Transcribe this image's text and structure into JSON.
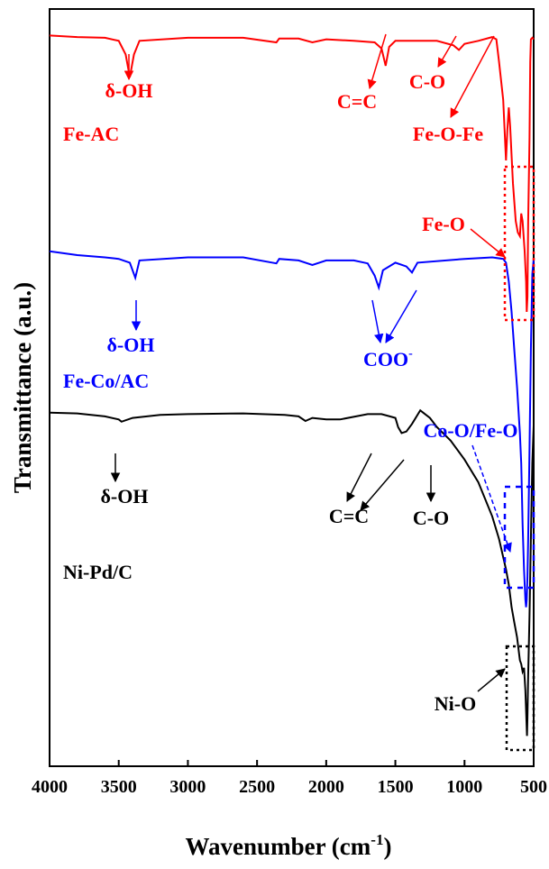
{
  "chart_data": {
    "type": "line",
    "xlabel": "Wavenumber (cm",
    "xlabel_sup": "-1",
    "xlabel_tail": ")",
    "ylabel": "Transmittance (a.u.)",
    "xlim": [
      4000,
      500
    ],
    "x_ticks": [
      4000,
      3500,
      3000,
      2500,
      2000,
      1500,
      1000,
      500
    ],
    "x_reversed": true,
    "y_ticks_shown": false,
    "grid": false,
    "series": [
      {
        "name": "Fe-AC",
        "color": "#ff0000",
        "points": [
          [
            4000,
            0.965
          ],
          [
            3800,
            0.963
          ],
          [
            3600,
            0.962
          ],
          [
            3500,
            0.958
          ],
          [
            3450,
            0.94
          ],
          [
            3420,
            0.91
          ],
          [
            3390,
            0.94
          ],
          [
            3350,
            0.958
          ],
          [
            3000,
            0.962
          ],
          [
            2600,
            0.962
          ],
          [
            2360,
            0.956
          ],
          [
            2340,
            0.961
          ],
          [
            2200,
            0.961
          ],
          [
            2100,
            0.956
          ],
          [
            2000,
            0.96
          ],
          [
            1800,
            0.958
          ],
          [
            1650,
            0.956
          ],
          [
            1600,
            0.948
          ],
          [
            1570,
            0.925
          ],
          [
            1545,
            0.95
          ],
          [
            1500,
            0.958
          ],
          [
            1200,
            0.958
          ],
          [
            1080,
            0.952
          ],
          [
            1040,
            0.946
          ],
          [
            1000,
            0.954
          ],
          [
            900,
            0.958
          ],
          [
            800,
            0.963
          ],
          [
            770,
            0.96
          ],
          [
            750,
            0.93
          ],
          [
            720,
            0.88
          ],
          [
            700,
            0.8
          ],
          [
            690,
            0.84
          ],
          [
            680,
            0.87
          ],
          [
            670,
            0.845
          ],
          [
            650,
            0.77
          ],
          [
            630,
            0.72
          ],
          [
            615,
            0.705
          ],
          [
            600,
            0.7
          ],
          [
            590,
            0.73
          ],
          [
            580,
            0.72
          ],
          [
            565,
            0.68
          ],
          [
            555,
            0.64
          ],
          [
            550,
            0.6
          ],
          [
            545,
            0.62
          ],
          [
            540,
            0.72
          ],
          [
            530,
            0.83
          ],
          [
            525,
            0.93
          ],
          [
            520,
            0.96
          ],
          [
            510,
            0.962
          ],
          [
            500,
            0.96
          ]
        ]
      },
      {
        "name": "Fe-Co/AC",
        "color": "#0000ff",
        "points": [
          [
            4000,
            0.68
          ],
          [
            3800,
            0.675
          ],
          [
            3600,
            0.672
          ],
          [
            3500,
            0.67
          ],
          [
            3420,
            0.665
          ],
          [
            3380,
            0.645
          ],
          [
            3350,
            0.668
          ],
          [
            3000,
            0.672
          ],
          [
            2600,
            0.672
          ],
          [
            2360,
            0.664
          ],
          [
            2340,
            0.67
          ],
          [
            2200,
            0.668
          ],
          [
            2100,
            0.662
          ],
          [
            2000,
            0.668
          ],
          [
            1800,
            0.668
          ],
          [
            1700,
            0.664
          ],
          [
            1650,
            0.648
          ],
          [
            1620,
            0.632
          ],
          [
            1590,
            0.655
          ],
          [
            1500,
            0.665
          ],
          [
            1420,
            0.66
          ],
          [
            1380,
            0.652
          ],
          [
            1340,
            0.665
          ],
          [
            1000,
            0.67
          ],
          [
            800,
            0.672
          ],
          [
            720,
            0.67
          ],
          [
            700,
            0.665
          ],
          [
            680,
            0.64
          ],
          [
            660,
            0.6
          ],
          [
            640,
            0.55
          ],
          [
            620,
            0.5
          ],
          [
            600,
            0.44
          ],
          [
            590,
            0.4
          ],
          [
            580,
            0.32
          ],
          [
            570,
            0.26
          ],
          [
            560,
            0.22
          ],
          [
            555,
            0.21
          ],
          [
            550,
            0.22
          ],
          [
            545,
            0.25
          ],
          [
            540,
            0.3
          ],
          [
            530,
            0.42
          ],
          [
            520,
            0.55
          ],
          [
            510,
            0.65
          ],
          [
            500,
            0.67
          ]
        ]
      },
      {
        "name": "Ni-Pd/C",
        "color": "#000000",
        "points": [
          [
            4000,
            0.467
          ],
          [
            3800,
            0.466
          ],
          [
            3600,
            0.462
          ],
          [
            3500,
            0.458
          ],
          [
            3480,
            0.455
          ],
          [
            3400,
            0.46
          ],
          [
            3200,
            0.464
          ],
          [
            3000,
            0.465
          ],
          [
            2600,
            0.466
          ],
          [
            2300,
            0.464
          ],
          [
            2200,
            0.462
          ],
          [
            2150,
            0.456
          ],
          [
            2100,
            0.46
          ],
          [
            2000,
            0.458
          ],
          [
            1900,
            0.458
          ],
          [
            1700,
            0.465
          ],
          [
            1600,
            0.465
          ],
          [
            1540,
            0.462
          ],
          [
            1500,
            0.46
          ],
          [
            1480,
            0.448
          ],
          [
            1455,
            0.44
          ],
          [
            1420,
            0.442
          ],
          [
            1380,
            0.452
          ],
          [
            1320,
            0.47
          ],
          [
            1300,
            0.467
          ],
          [
            1250,
            0.46
          ],
          [
            1200,
            0.448
          ],
          [
            1100,
            0.43
          ],
          [
            1000,
            0.405
          ],
          [
            900,
            0.375
          ],
          [
            800,
            0.33
          ],
          [
            750,
            0.3
          ],
          [
            700,
            0.26
          ],
          [
            680,
            0.24
          ],
          [
            660,
            0.21
          ],
          [
            640,
            0.19
          ],
          [
            620,
            0.17
          ],
          [
            600,
            0.14
          ],
          [
            590,
            0.135
          ],
          [
            580,
            0.125
          ],
          [
            570,
            0.13
          ],
          [
            560,
            0.1
          ],
          [
            552,
            0.06
          ],
          [
            548,
            0.04
          ],
          [
            545,
            0.065
          ],
          [
            540,
            0.12
          ],
          [
            530,
            0.2
          ],
          [
            520,
            0.3
          ],
          [
            510,
            0.4
          ],
          [
            500,
            0.45
          ]
        ]
      }
    ],
    "labels": [
      {
        "id": "fe-ac-label",
        "text": "Fe-AC",
        "color": "#ff0000"
      },
      {
        "id": "fe-co-ac-label",
        "text": "Fe-Co/AC",
        "color": "#0000ff"
      },
      {
        "id": "ni-pd-c-label",
        "text": "Ni-Pd/C",
        "color": "#000000"
      }
    ],
    "annotations": [
      {
        "id": "fe-ac-oh",
        "text": "δ-OH",
        "color": "#ff0000"
      },
      {
        "id": "fe-ac-cc",
        "text": "C=C",
        "color": "#ff0000"
      },
      {
        "id": "fe-ac-co",
        "text": "C-O",
        "color": "#ff0000"
      },
      {
        "id": "fe-ac-feofe",
        "text": "Fe-O-Fe",
        "color": "#ff0000"
      },
      {
        "id": "fe-ac-feo",
        "text": "Fe-O",
        "color": "#ff0000"
      },
      {
        "id": "fe-co-oh",
        "text": "δ-OH",
        "color": "#0000ff"
      },
      {
        "id": "fe-co-coo",
        "text": "COO",
        "color": "#0000ff",
        "sup": "-"
      },
      {
        "id": "fe-co-cooofeo",
        "text": "Co-O/Fe-O",
        "color": "#0000ff"
      },
      {
        "id": "ni-pd-oh",
        "text": "δ-OH",
        "color": "#000000"
      },
      {
        "id": "ni-pd-cc",
        "text": "C=C",
        "color": "#000000"
      },
      {
        "id": "ni-pd-co",
        "text": "C-O",
        "color": "#000000"
      },
      {
        "id": "ni-pd-nio",
        "text": "Ni-O",
        "color": "#000000"
      }
    ]
  }
}
